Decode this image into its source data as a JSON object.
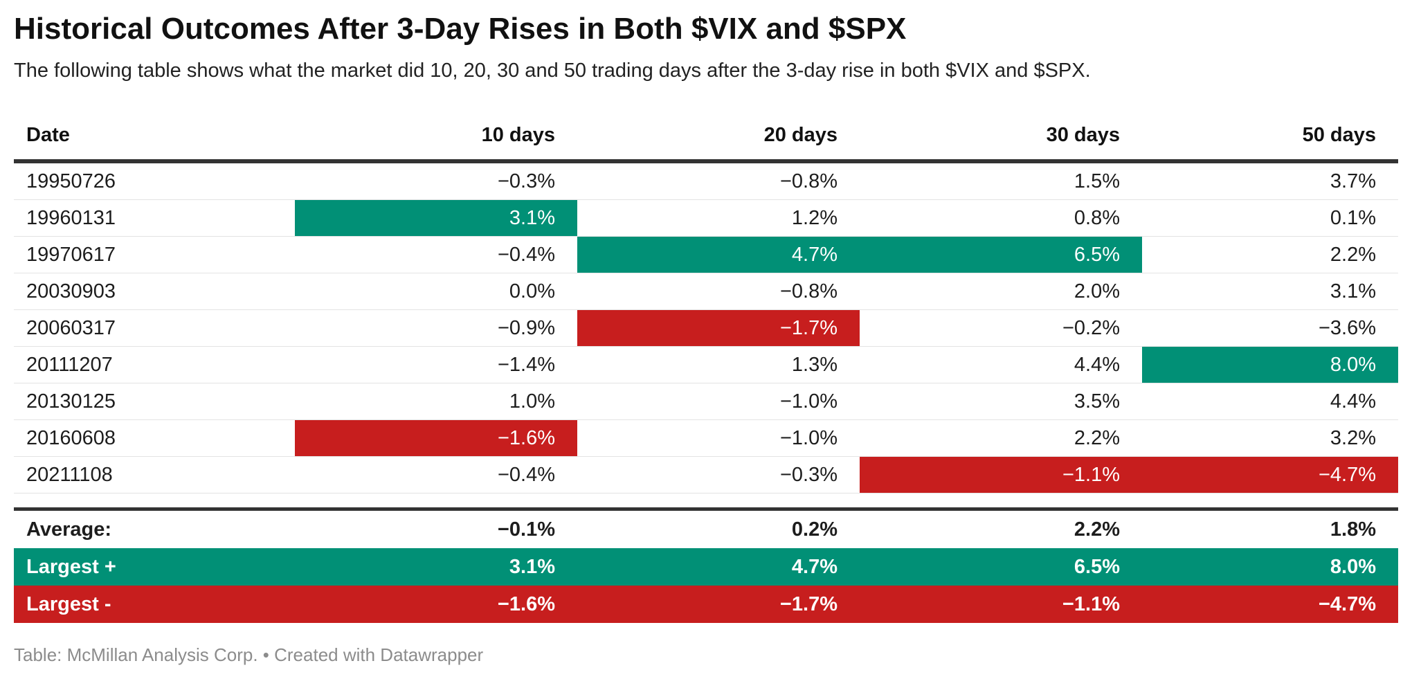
{
  "header": {
    "title": "Historical Outcomes After 3-Day Rises in Both $VIX and $SPX",
    "subtitle": "The following table shows what the market did 10, 20, 30 and 50 trading days after the 3-day rise in both $VIX and $SPX."
  },
  "footer": {
    "credit": "Table: McMillan Analysis Corp. • Created with Datawrapper"
  },
  "colors": {
    "positive_highlight": "#019076",
    "negative_highlight": "#c71e1e",
    "header_border": "#333333",
    "row_separator": "#e3e3e3",
    "text": "#1d1d1d",
    "footer_text": "#8c8c8c"
  },
  "table": {
    "columns": [
      "Date",
      "10 days",
      "20 days",
      "30 days",
      "50 days"
    ],
    "rows": [
      {
        "date": "19950726",
        "cells": [
          {
            "text": "−0.3%",
            "bg": null
          },
          {
            "text": "−0.8%",
            "bg": null
          },
          {
            "text": "1.5%",
            "bg": null
          },
          {
            "text": "3.7%",
            "bg": null
          }
        ]
      },
      {
        "date": "19960131",
        "cells": [
          {
            "text": "3.1%",
            "bg": "green"
          },
          {
            "text": "1.2%",
            "bg": null
          },
          {
            "text": "0.8%",
            "bg": null
          },
          {
            "text": "0.1%",
            "bg": null
          }
        ]
      },
      {
        "date": "19970617",
        "cells": [
          {
            "text": "−0.4%",
            "bg": null
          },
          {
            "text": "4.7%",
            "bg": "green"
          },
          {
            "text": "6.5%",
            "bg": "green"
          },
          {
            "text": "2.2%",
            "bg": null
          }
        ]
      },
      {
        "date": "20030903",
        "cells": [
          {
            "text": "0.0%",
            "bg": null
          },
          {
            "text": "−0.8%",
            "bg": null
          },
          {
            "text": "2.0%",
            "bg": null
          },
          {
            "text": "3.1%",
            "bg": null
          }
        ]
      },
      {
        "date": "20060317",
        "cells": [
          {
            "text": "−0.9%",
            "bg": null
          },
          {
            "text": "−1.7%",
            "bg": "red"
          },
          {
            "text": "−0.2%",
            "bg": null
          },
          {
            "text": "−3.6%",
            "bg": null
          }
        ]
      },
      {
        "date": "20111207",
        "cells": [
          {
            "text": "−1.4%",
            "bg": null
          },
          {
            "text": "1.3%",
            "bg": null
          },
          {
            "text": "4.4%",
            "bg": null
          },
          {
            "text": "8.0%",
            "bg": "green"
          }
        ]
      },
      {
        "date": "20130125",
        "cells": [
          {
            "text": "1.0%",
            "bg": null
          },
          {
            "text": "−1.0%",
            "bg": null
          },
          {
            "text": "3.5%",
            "bg": null
          },
          {
            "text": "4.4%",
            "bg": null
          }
        ]
      },
      {
        "date": "20160608",
        "cells": [
          {
            "text": "−1.6%",
            "bg": "red"
          },
          {
            "text": "−1.0%",
            "bg": null
          },
          {
            "text": "2.2%",
            "bg": null
          },
          {
            "text": "3.2%",
            "bg": null
          }
        ]
      },
      {
        "date": "20211108",
        "cells": [
          {
            "text": "−0.4%",
            "bg": null
          },
          {
            "text": "−0.3%",
            "bg": null
          },
          {
            "text": "−1.1%",
            "bg": "red"
          },
          {
            "text": "−4.7%",
            "bg": "red"
          }
        ]
      }
    ],
    "summary_rows": [
      {
        "label": "Average:",
        "style": "plain",
        "cells": [
          "−0.1%",
          "0.2%",
          "2.2%",
          "1.8%"
        ]
      },
      {
        "label": "Largest +",
        "style": "green",
        "cells": [
          "3.1%",
          "4.7%",
          "6.5%",
          "8.0%"
        ]
      },
      {
        "label": "Largest -",
        "style": "red",
        "cells": [
          "−1.6%",
          "−1.7%",
          "−1.1%",
          "−4.7%"
        ]
      }
    ]
  },
  "chart_data": {
    "type": "table",
    "title": "Historical Outcomes After 3-Day Rises in Both $VIX and $SPX",
    "subtitle": "The following table shows what the market did 10, 20, 30 and 50 trading days after the 3-day rise in both $VIX and $SPX.",
    "columns": [
      "Date",
      "10 days",
      "20 days",
      "30 days",
      "50 days"
    ],
    "units": "%",
    "rows": [
      [
        "19950726",
        -0.3,
        -0.8,
        1.5,
        3.7
      ],
      [
        "19960131",
        3.1,
        1.2,
        0.8,
        0.1
      ],
      [
        "19970617",
        -0.4,
        4.7,
        6.5,
        2.2
      ],
      [
        "20030903",
        0.0,
        -0.8,
        2.0,
        3.1
      ],
      [
        "20060317",
        -0.9,
        -1.7,
        -0.2,
        -3.6
      ],
      [
        "20111207",
        -1.4,
        1.3,
        4.4,
        8.0
      ],
      [
        "20130125",
        1.0,
        -1.0,
        3.5,
        4.4
      ],
      [
        "20160608",
        -1.6,
        -1.0,
        2.2,
        3.2
      ],
      [
        "20211108",
        -0.4,
        -0.3,
        -1.1,
        -4.7
      ]
    ],
    "summary": {
      "average": [
        -0.1,
        0.2,
        2.2,
        1.8
      ],
      "largest_positive": [
        3.1,
        4.7,
        6.5,
        8.0
      ],
      "largest_negative": [
        -1.6,
        -1.7,
        -1.1,
        -4.7
      ]
    },
    "highlighting": "largest positive value per column shaded green, largest negative value per column shaded red"
  }
}
